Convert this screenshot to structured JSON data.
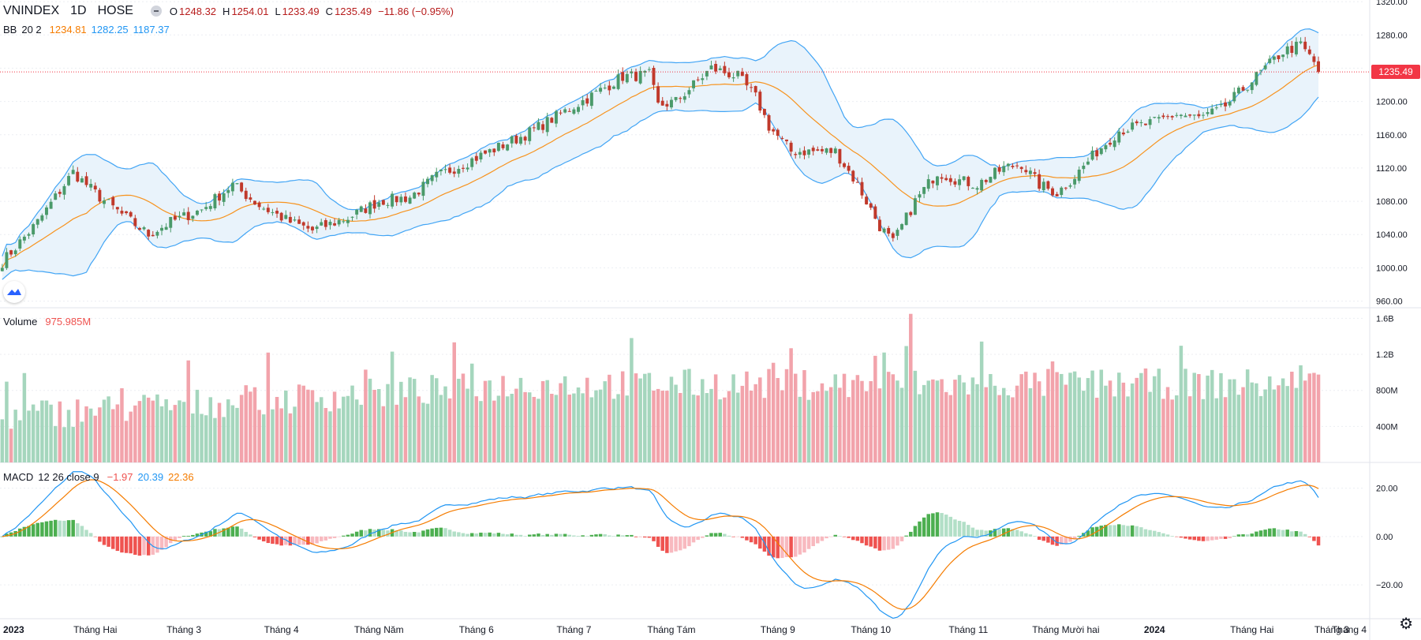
{
  "header": {
    "symbol": "VNINDEX",
    "interval": "1D",
    "exchange": "HOSE",
    "ohlc": {
      "o_label": "O",
      "o": "1248.32",
      "h_label": "H",
      "h": "1254.01",
      "l_label": "L",
      "l": "1233.49",
      "c_label": "C",
      "c": "1235.49",
      "change": "−11.86 (−0.95%)"
    }
  },
  "bb_legend": {
    "name": "BB",
    "params": "20 2",
    "basis": "1234.81",
    "upper": "1282.25",
    "lower": "1187.37"
  },
  "volume_legend": {
    "name": "Volume",
    "value": "975.985M"
  },
  "macd_legend": {
    "name": "MACD",
    "params": "12 26 close 9",
    "hist": "−1.97",
    "macd": "20.39",
    "signal": "22.36"
  },
  "last_price_label": "1235.49",
  "colors": {
    "up": "#26a69a",
    "down": "#ef5350",
    "candle_up": "#4a9a6a",
    "candle_down": "#c0392b",
    "vol_up": "#a5d6bd",
    "vol_down": "#f2a3ab",
    "bb_basis": "#f7931e",
    "bb_band": "#42a5f5",
    "bb_fill": "#e9f3fb",
    "macd_line": "#2196f3",
    "signal_line": "#f57c00",
    "hist_up_strong": "#4caf50",
    "hist_up_weak": "#b2dfc7",
    "hist_down_strong": "#ef5350",
    "hist_down_weak": "#f8b9bf",
    "last_price": "#f23645"
  },
  "chart_data": [
    {
      "type": "candlestick",
      "title": "VNINDEX 1D HOSE",
      "y_axis_ticks": [
        "1320.00",
        "1280.00",
        "1240.00",
        "1200.00",
        "1160.00",
        "1120.00",
        "1080.00",
        "1040.00",
        "1000.00",
        "960.00"
      ],
      "ylim": [
        952,
        1322
      ],
      "x_axis_labels": [
        "2023",
        "Tháng Hai",
        "Tháng 3",
        "Tháng 4",
        "Tháng Năm",
        "Tháng 6",
        "Tháng 7",
        "Tháng Tám",
        "Tháng 9",
        "Tháng 10",
        "Tháng 11",
        "Tháng Mười hai",
        "2024",
        "Tháng Hai",
        "Tháng 3",
        "Tháng 4"
      ],
      "close_keypoints": [
        [
          0,
          1007
        ],
        [
          8,
          1055
        ],
        [
          16,
          1115
        ],
        [
          22,
          1085
        ],
        [
          28,
          1060
        ],
        [
          33,
          1040
        ],
        [
          38,
          1055
        ],
        [
          45,
          1070
        ],
        [
          52,
          1100
        ],
        [
          58,
          1075
        ],
        [
          65,
          1055
        ],
        [
          70,
          1045
        ],
        [
          78,
          1060
        ],
        [
          85,
          1080
        ],
        [
          92,
          1085
        ],
        [
          98,
          1110
        ],
        [
          104,
          1125
        ],
        [
          110,
          1140
        ],
        [
          118,
          1160
        ],
        [
          126,
          1185
        ],
        [
          134,
          1210
        ],
        [
          140,
          1230
        ],
        [
          146,
          1232
        ],
        [
          148,
          1195
        ],
        [
          152,
          1200
        ],
        [
          160,
          1240
        ],
        [
          166,
          1230
        ],
        [
          170,
          1205
        ],
        [
          173,
          1170
        ],
        [
          178,
          1140
        ],
        [
          183,
          1140
        ],
        [
          188,
          1140
        ],
        [
          193,
          1100
        ],
        [
          198,
          1050
        ],
        [
          201,
          1030
        ],
        [
          206,
          1080
        ],
        [
          211,
          1115
        ],
        [
          216,
          1105
        ],
        [
          220,
          1100
        ],
        [
          226,
          1120
        ],
        [
          230,
          1125
        ],
        [
          234,
          1100
        ],
        [
          238,
          1090
        ],
        [
          242,
          1110
        ],
        [
          247,
          1140
        ],
        [
          252,
          1165
        ],
        [
          256,
          1170
        ],
        [
          260,
          1175
        ],
        [
          265,
          1185
        ],
        [
          270,
          1180
        ],
        [
          275,
          1190
        ],
        [
          280,
          1215
        ],
        [
          285,
          1240
        ],
        [
          289,
          1260
        ],
        [
          293,
          1268
        ],
        [
          296,
          1247
        ],
        [
          297,
          1235
        ]
      ],
      "bb": {
        "basis_last": 1234.81,
        "upper_last": 1282.25,
        "lower_last": 1187.37,
        "period": 20,
        "stddev": 2
      },
      "last_close": 1235.49
    },
    {
      "type": "bar",
      "title": "Volume",
      "y_axis_ticks": [
        "1.6B",
        "1.2B",
        "800M",
        "400M"
      ],
      "ylim": [
        0,
        1.7
      ],
      "unit": "B",
      "last_value": 0.976
    },
    {
      "type": "line",
      "title": "MACD 12 26 close 9",
      "y_axis_ticks": [
        "20.00",
        "0.00",
        "−20.00"
      ],
      "ylim": [
        -34,
        30
      ],
      "series": [
        {
          "name": "MACD",
          "last": 20.39
        },
        {
          "name": "Signal",
          "last": 22.36
        },
        {
          "name": "Histogram",
          "last": -1.97
        }
      ]
    }
  ]
}
